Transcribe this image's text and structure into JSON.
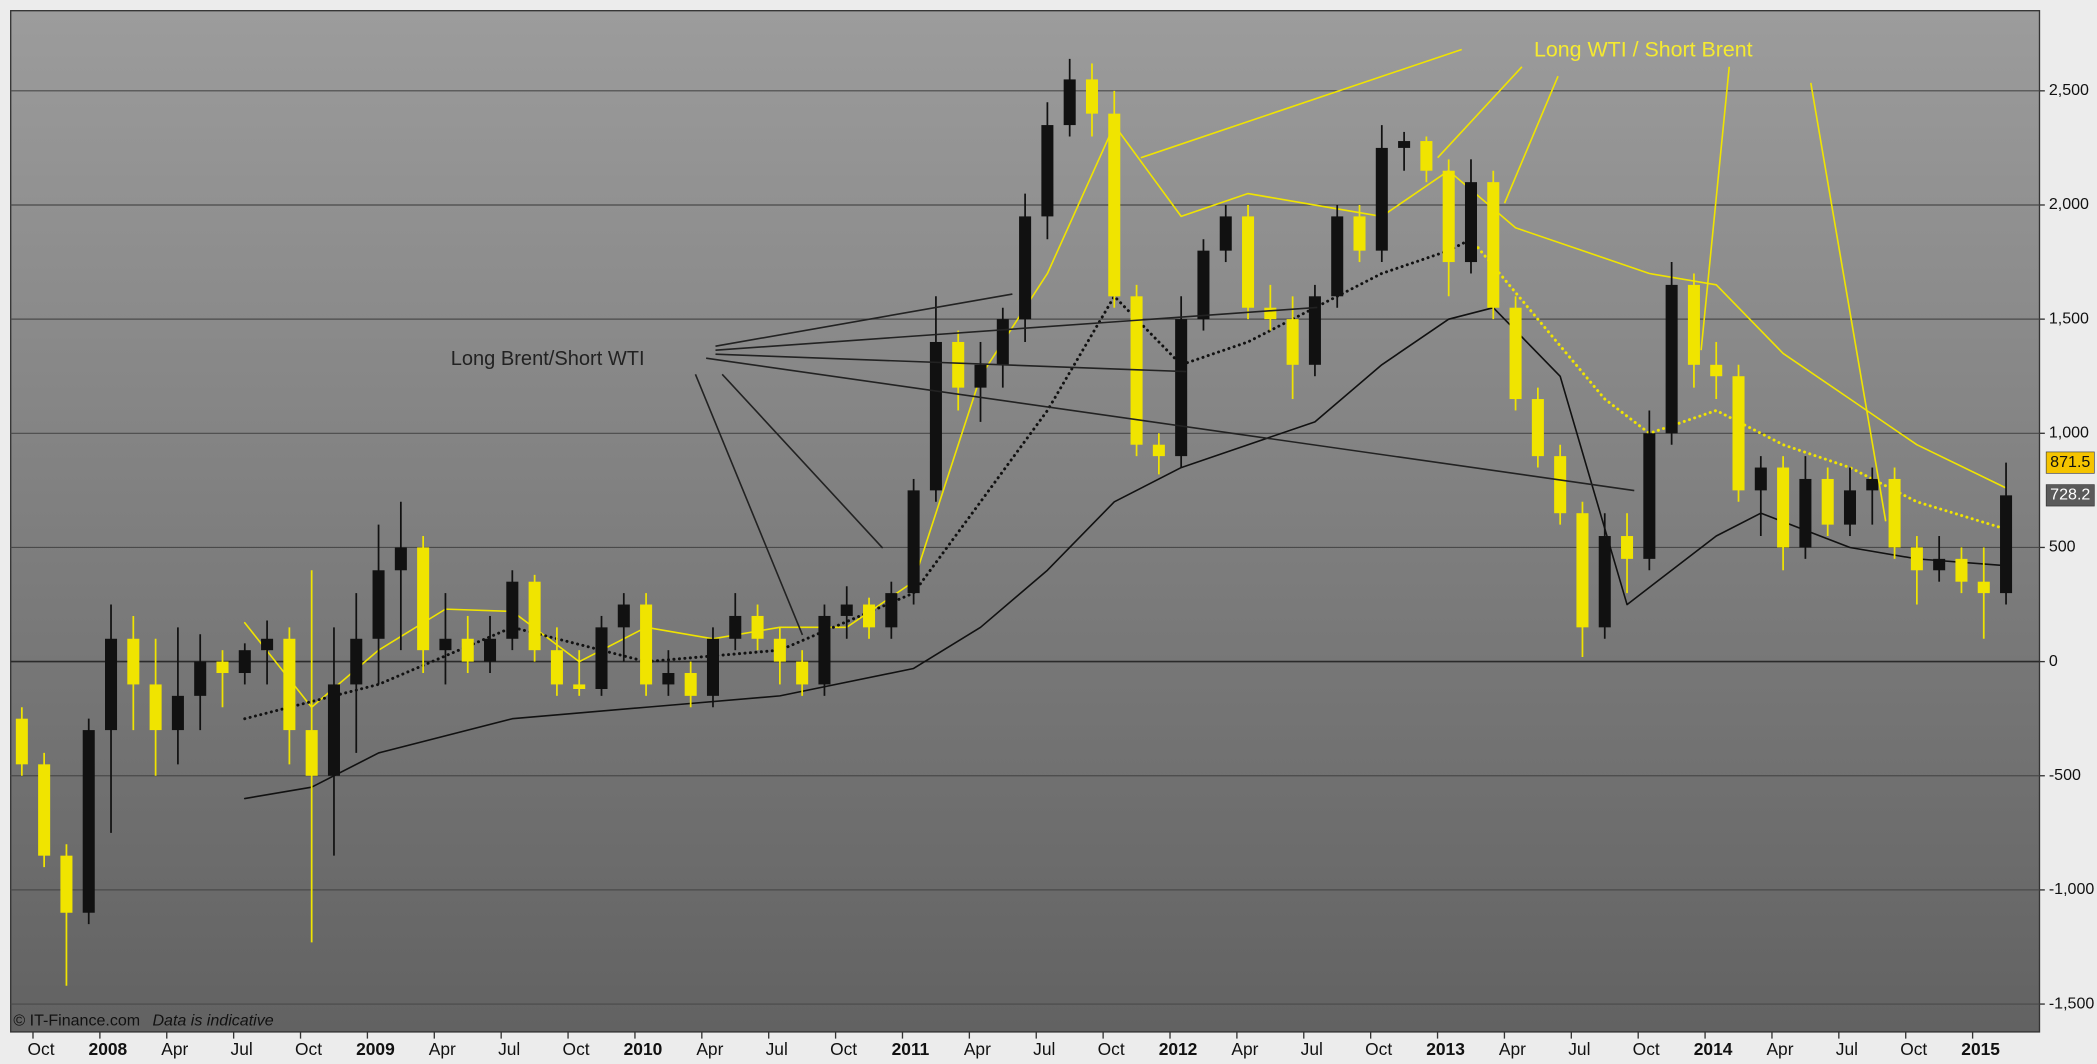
{
  "chart_data": {
    "type": "candlestick",
    "annotations": [
      "Long WTI / Short Brent",
      "Long Brent/Short WTI"
    ],
    "footer": {
      "source": "© IT-Finance.com",
      "note": "Data is indicative"
    },
    "up_color": "#111111",
    "down_color": "#f0e400",
    "grid": true,
    "xlim": [
      "2007-09",
      "2015-04"
    ],
    "ylim": [
      -1622,
      2851
    ],
    "yticks": [
      {
        "value": 2500,
        "label": "2,500"
      },
      {
        "value": 2000,
        "label": "2,000"
      },
      {
        "value": 1500,
        "label": "1,500"
      },
      {
        "value": 1000,
        "label": "1,000"
      },
      500,
      0,
      -500,
      {
        "value": -1000,
        "label": "-1,000"
      },
      {
        "value": -1500,
        "label": "-1,500"
      }
    ],
    "xticks": [
      {
        "value": "2007-10",
        "label": "Oct"
      },
      {
        "value": "2008-01",
        "label": "2008"
      },
      {
        "value": "2008-04",
        "label": "Apr"
      },
      {
        "value": "2008-07",
        "label": "Jul"
      },
      {
        "value": "2008-10",
        "label": "Oct"
      },
      {
        "value": "2009-01",
        "label": "2009"
      },
      {
        "value": "2009-04",
        "label": "Apr"
      },
      {
        "value": "2009-07",
        "label": "Jul"
      },
      {
        "value": "2009-10",
        "label": "Oct"
      },
      {
        "value": "2010-01",
        "label": "2010"
      },
      {
        "value": "2010-04",
        "label": "Apr"
      },
      {
        "value": "2010-07",
        "label": "Jul"
      },
      {
        "value": "2010-10",
        "label": "Oct"
      },
      {
        "value": "2011-01",
        "label": "2011"
      },
      {
        "value": "2011-04",
        "label": "Apr"
      },
      {
        "value": "2011-07",
        "label": "Jul"
      },
      {
        "value": "2011-10",
        "label": "Oct"
      },
      {
        "value": "2012-01",
        "label": "2012"
      },
      {
        "value": "2012-04",
        "label": "Apr"
      },
      {
        "value": "2012-07",
        "label": "Jul"
      },
      {
        "value": "2012-10",
        "label": "Oct"
      },
      {
        "value": "2013-01",
        "label": "2013"
      },
      {
        "value": "2013-04",
        "label": "Apr"
      },
      {
        "value": "2013-07",
        "label": "Jul"
      },
      {
        "value": "2013-10",
        "label": "Oct"
      },
      {
        "value": "2014-01",
        "label": "2014"
      },
      {
        "value": "2014-04",
        "label": "Apr"
      },
      {
        "value": "2014-07",
        "label": "Jul"
      },
      {
        "value": "2014-10",
        "label": "Oct"
      },
      {
        "value": "2015-01",
        "label": "2015"
      }
    ],
    "x": [
      "2007-09",
      "2007-10",
      "2007-11",
      "2007-12",
      "2008-01",
      "2008-02",
      "2008-03",
      "2008-04",
      "2008-05",
      "2008-06",
      "2008-07",
      "2008-08",
      "2008-09",
      "2008-10",
      "2008-11",
      "2008-12",
      "2009-01",
      "2009-02",
      "2009-03",
      "2009-04",
      "2009-05",
      "2009-06",
      "2009-07",
      "2009-08",
      "2009-09",
      "2009-10",
      "2009-11",
      "2009-12",
      "2010-01",
      "2010-02",
      "2010-03",
      "2010-04",
      "2010-05",
      "2010-06",
      "2010-07",
      "2010-08",
      "2010-09",
      "2010-10",
      "2010-11",
      "2010-12",
      "2011-01",
      "2011-02",
      "2011-03",
      "2011-04",
      "2011-05",
      "2011-06",
      "2011-07",
      "2011-08",
      "2011-09",
      "2011-10",
      "2011-11",
      "2011-12",
      "2012-01",
      "2012-02",
      "2012-03",
      "2012-04",
      "2012-05",
      "2012-06",
      "2012-07",
      "2012-08",
      "2012-09",
      "2012-10",
      "2012-11",
      "2012-12",
      "2013-01",
      "2013-02",
      "2013-03",
      "2013-04",
      "2013-05",
      "2013-06",
      "2013-07",
      "2013-08",
      "2013-09",
      "2013-10",
      "2013-11",
      "2013-12",
      "2014-01",
      "2014-02",
      "2014-03",
      "2014-04",
      "2014-05",
      "2014-06",
      "2014-07",
      "2014-08",
      "2014-09",
      "2014-10",
      "2014-11",
      "2014-12",
      "2015-01",
      "2015-02"
    ],
    "open": [
      -250,
      -450,
      -850,
      -1100,
      -300,
      100,
      -100,
      -300,
      -150,
      0,
      -50,
      50,
      100,
      -300,
      -500,
      -100,
      100,
      400,
      500,
      50,
      100,
      0,
      100,
      350,
      50,
      -100,
      -120,
      150,
      250,
      -100,
      -50,
      -150,
      100,
      200,
      100,
      0,
      -100,
      200,
      250,
      150,
      300,
      750,
      1400,
      1200,
      1300,
      1500,
      1950,
      2350,
      2550,
      2400,
      1600,
      950,
      900,
      1500,
      1800,
      1950,
      1550,
      1500,
      1300,
      1600,
      1950,
      1800,
      2250,
      2280,
      2150,
      1750,
      2100,
      1550,
      1150,
      900,
      650,
      150,
      550,
      450,
      1000,
      1650,
      1300,
      1250,
      750,
      850,
      500,
      800,
      600,
      750,
      800,
      500,
      400,
      450,
      350,
      300
    ],
    "high": [
      -200,
      -400,
      -800,
      -250,
      250,
      200,
      100,
      150,
      120,
      50,
      80,
      180,
      150,
      400,
      150,
      300,
      600,
      700,
      550,
      300,
      200,
      200,
      400,
      380,
      150,
      50,
      200,
      300,
      300,
      50,
      0,
      150,
      300,
      250,
      150,
      50,
      250,
      330,
      280,
      350,
      800,
      1600,
      1450,
      1400,
      1550,
      2050,
      2450,
      2640,
      2620,
      2500,
      1650,
      1000,
      1600,
      1850,
      2000,
      2000,
      1650,
      1600,
      1650,
      2000,
      2000,
      2350,
      2320,
      2300,
      2200,
      2200,
      2150,
      1600,
      1200,
      950,
      700,
      650,
      650,
      1100,
      1750,
      1700,
      1400,
      1300,
      900,
      900,
      900,
      850,
      850,
      850,
      850,
      550,
      550,
      500,
      500,
      871.5
    ],
    "low": [
      -500,
      -900,
      -1420,
      -1150,
      -750,
      -300,
      -500,
      -450,
      -300,
      -200,
      -100,
      -100,
      -450,
      -1230,
      -850,
      -400,
      -100,
      50,
      -50,
      -100,
      -50,
      -50,
      50,
      0,
      -150,
      -150,
      -150,
      0,
      -150,
      -150,
      -200,
      -200,
      50,
      50,
      -100,
      -150,
      -150,
      100,
      100,
      100,
      250,
      700,
      1100,
      1050,
      1200,
      1400,
      1850,
      2300,
      2300,
      1550,
      900,
      820,
      850,
      1450,
      1750,
      1500,
      1450,
      1150,
      1250,
      1550,
      1750,
      1750,
      2150,
      2100,
      1600,
      1700,
      1500,
      1100,
      850,
      600,
      20,
      100,
      300,
      400,
      950,
      1200,
      1150,
      700,
      550,
      400,
      450,
      550,
      550,
      600,
      450,
      250,
      350,
      300,
      100,
      250
    ],
    "close": [
      -450,
      -850,
      -1100,
      -300,
      100,
      -100,
      -300,
      -150,
      0,
      -50,
      50,
      100,
      -300,
      -500,
      -100,
      100,
      400,
      500,
      50,
      100,
      0,
      100,
      350,
      50,
      -100,
      -120,
      150,
      250,
      -100,
      -50,
      -150,
      100,
      200,
      100,
      0,
      -100,
      200,
      250,
      150,
      300,
      750,
      1400,
      1200,
      1300,
      1500,
      1950,
      2350,
      2550,
      2400,
      1600,
      950,
      900,
      1500,
      1800,
      1950,
      1550,
      1500,
      1300,
      1600,
      1950,
      1800,
      2250,
      2280,
      2150,
      1750,
      2100,
      1550,
      1150,
      900,
      650,
      150,
      550,
      450,
      1000,
      1650,
      1300,
      1250,
      750,
      850,
      500,
      800,
      600,
      750,
      800,
      500,
      400,
      450,
      350,
      300,
      728.2
    ],
    "lines": [
      {
        "color": "#f0e400",
        "style": "solid",
        "x": [
          "2008-07",
          "2008-10",
          "2009-01",
          "2009-04",
          "2009-07",
          "2009-10",
          "2010-01",
          "2010-04",
          "2010-07",
          "2010-10",
          "2011-01",
          "2011-04",
          "2011-07",
          "2011-10",
          "2012-01",
          "2012-04",
          "2012-07",
          "2012-10",
          "2013-01",
          "2013-04",
          "2013-07",
          "2013-10",
          "2014-01",
          "2014-04",
          "2014-07",
          "2014-10",
          "2015-02"
        ],
        "values": [
          170,
          -200,
          50,
          230,
          220,
          0,
          150,
          100,
          150,
          150,
          350,
          1250,
          1700,
          2350,
          1950,
          2050,
          2000,
          1950,
          2150,
          1900,
          1800,
          1700,
          1650,
          1350,
          1150,
          950,
          760
        ]
      },
      {
        "color": "#111111",
        "style": "dotted",
        "x": [
          "2008-07",
          "2009-01",
          "2009-07",
          "2010-01",
          "2010-07",
          "2011-01",
          "2011-04",
          "2011-07",
          "2011-10",
          "2012-01",
          "2012-04",
          "2012-07",
          "2012-10",
          "2013-01",
          "2013-02"
        ],
        "values": [
          -250,
          -100,
          150,
          0,
          50,
          300,
          700,
          1100,
          1600,
          1300,
          1400,
          1550,
          1700,
          1800,
          1850
        ]
      },
      {
        "color": "#f0e400",
        "style": "dotted",
        "x": [
          "2013-02",
          "2013-05",
          "2013-08",
          "2013-10",
          "2014-01",
          "2014-04",
          "2014-07",
          "2014-10",
          "2015-02"
        ],
        "values": [
          1850,
          1500,
          1150,
          1000,
          1100,
          950,
          850,
          700,
          580
        ]
      },
      {
        "color": "#111111",
        "style": "solid",
        "x": [
          "2008-07",
          "2008-10",
          "2009-01",
          "2009-07",
          "2010-01",
          "2010-07",
          "2011-01",
          "2011-04",
          "2011-07",
          "2011-10",
          "2012-01",
          "2012-04",
          "2012-07",
          "2012-10",
          "2013-01",
          "2013-03",
          "2013-06",
          "2013-09",
          "2014-01",
          "2014-03",
          "2014-07",
          "2014-10",
          "2015-02"
        ],
        "values": [
          -600,
          -550,
          -400,
          -250,
          -200,
          -150,
          -30,
          150,
          400,
          700,
          850,
          950,
          1050,
          1300,
          1500,
          1550,
          1250,
          250,
          550,
          650,
          500,
          450,
          420
        ]
      }
    ]
  }
}
